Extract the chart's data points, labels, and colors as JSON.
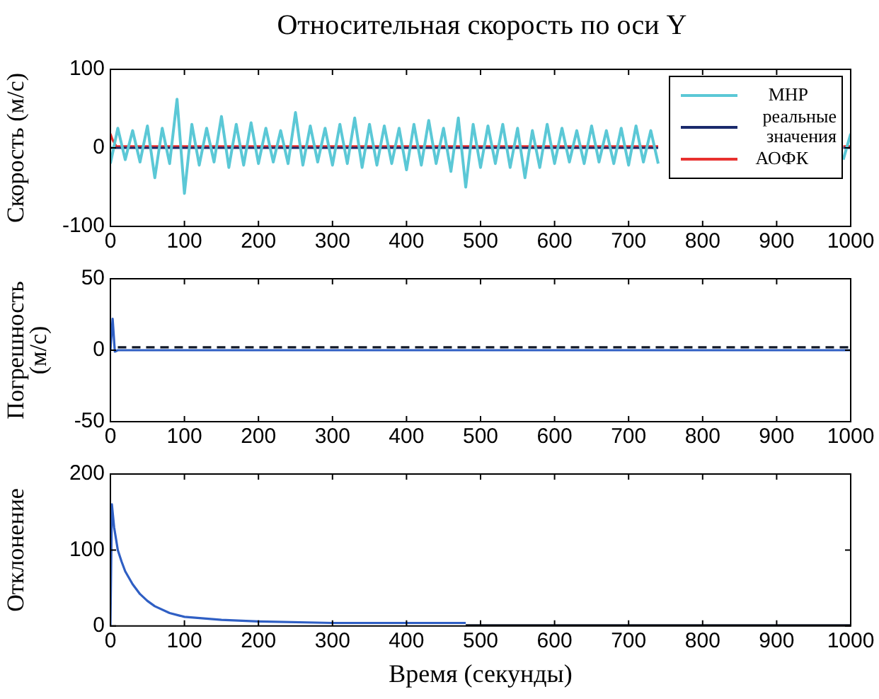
{
  "chart_data": [
    {
      "type": "line",
      "title": "Относительная скорость по оси Y",
      "ylabel": "Скорость (м/с)",
      "xlim": [
        0,
        1000
      ],
      "xticks": [
        0,
        100,
        200,
        300,
        400,
        500,
        600,
        700,
        800,
        900,
        1000
      ],
      "ylim": [
        -100,
        100
      ],
      "yticks": [
        -100,
        0,
        100
      ],
      "grid": false,
      "legend": "top right",
      "marker": "none",
      "line_style": "solid",
      "series": [
        {
          "name": "МНР",
          "color": "#5bc8d6",
          "x": [
            0,
            10,
            20,
            30,
            40,
            50,
            60,
            70,
            80,
            90,
            100,
            110,
            120,
            130,
            140,
            150,
            160,
            170,
            180,
            190,
            200,
            210,
            220,
            230,
            240,
            250,
            260,
            270,
            280,
            290,
            300,
            310,
            320,
            330,
            340,
            350,
            360,
            370,
            380,
            390,
            400,
            410,
            420,
            430,
            440,
            450,
            460,
            470,
            480,
            490,
            500,
            510,
            520,
            530,
            540,
            550,
            560,
            570,
            580,
            590,
            600,
            610,
            620,
            630,
            640,
            650,
            660,
            670,
            680,
            690,
            700,
            710,
            720,
            730,
            740,
            760,
            990,
            1000
          ],
          "values": [
            -20,
            25,
            -15,
            22,
            -18,
            28,
            -38,
            25,
            -20,
            62,
            -58,
            30,
            -22,
            25,
            -18,
            40,
            -25,
            30,
            -22,
            32,
            -20,
            25,
            -18,
            22,
            -20,
            45,
            -22,
            28,
            -18,
            25,
            -22,
            30,
            -20,
            38,
            -25,
            30,
            -22,
            28,
            -20,
            25,
            -28,
            30,
            -22,
            35,
            -20,
            25,
            -30,
            38,
            -50,
            30,
            -25,
            28,
            -20,
            30,
            -25,
            25,
            -38,
            22,
            -25,
            30,
            -20,
            25,
            -18,
            22,
            -20,
            28,
            -18,
            22,
            -20,
            25,
            -22,
            28,
            -18,
            22,
            -20,
            null,
            -15,
            18
          ]
        },
        {
          "name": "реальные значения",
          "color": "#1a2a6c",
          "x": [
            0,
            740,
            760,
            990,
            1000
          ],
          "values": [
            0,
            0,
            null,
            0,
            0
          ]
        },
        {
          "name": "АОФК",
          "color": "#e8312f",
          "x": [
            0,
            3,
            8,
            740,
            760,
            990,
            1000
          ],
          "values": [
            18,
            10,
            2,
            2,
            null,
            2,
            2
          ]
        }
      ]
    },
    {
      "type": "line",
      "ylabel": "Погрешность\n(м/с)",
      "xlim": [
        0,
        1000
      ],
      "xticks": [
        0,
        100,
        200,
        300,
        400,
        500,
        600,
        700,
        800,
        900,
        1000
      ],
      "ylim": [
        -50,
        50
      ],
      "yticks": [
        -50,
        0,
        50
      ],
      "grid": false,
      "marker": "none",
      "series": [
        {
          "color": "#2f5fc4",
          "x": [
            0,
            3,
            6,
            10,
            1000
          ],
          "values": [
            0,
            22,
            -1,
            0,
            0
          ]
        },
        {
          "color": "#111827",
          "line_style": "dashed",
          "x": [
            10,
            1000
          ],
          "values": [
            2,
            2
          ]
        }
      ]
    },
    {
      "type": "line",
      "ylabel": "Отклонение",
      "xlabel": "Время (секунды)",
      "xlim": [
        0,
        1000
      ],
      "xticks": [
        0,
        100,
        200,
        300,
        400,
        500,
        600,
        700,
        800,
        900,
        1000
      ],
      "ylim": [
        0,
        200
      ],
      "yticks": [
        0,
        100,
        200
      ],
      "grid": false,
      "marker": "none",
      "series": [
        {
          "color": "#2f5fc4",
          "x": [
            0,
            2,
            5,
            10,
            15,
            20,
            30,
            40,
            50,
            60,
            80,
            100,
            150,
            200,
            300,
            400,
            480
          ],
          "values": [
            0,
            160,
            130,
            100,
            85,
            72,
            55,
            42,
            33,
            26,
            17,
            12,
            8,
            6,
            4,
            4,
            4
          ]
        },
        {
          "color": "#111827",
          "x": [
            480,
            1000
          ],
          "values": [
            1,
            1
          ]
        }
      ]
    }
  ]
}
